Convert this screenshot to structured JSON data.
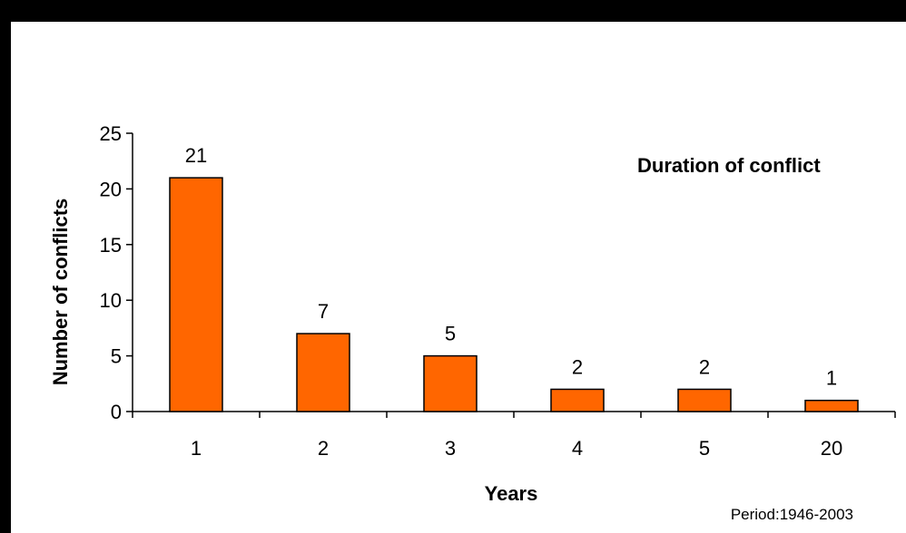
{
  "chart_data": {
    "type": "bar",
    "title": "Duration of conflict",
    "xlabel": "Years",
    "ylabel": "Number of conflicts",
    "note": "Period:1946-2003",
    "categories": [
      "1",
      "2",
      "3",
      "4",
      "5",
      "20"
    ],
    "values": [
      21,
      7,
      5,
      2,
      2,
      1
    ],
    "ylim": [
      0,
      25
    ],
    "yticks": [
      0,
      5,
      10,
      15,
      20,
      25
    ],
    "grid": false,
    "legend": "none",
    "bar_color": "#FF6600",
    "bar_border_color": "#000000"
  }
}
